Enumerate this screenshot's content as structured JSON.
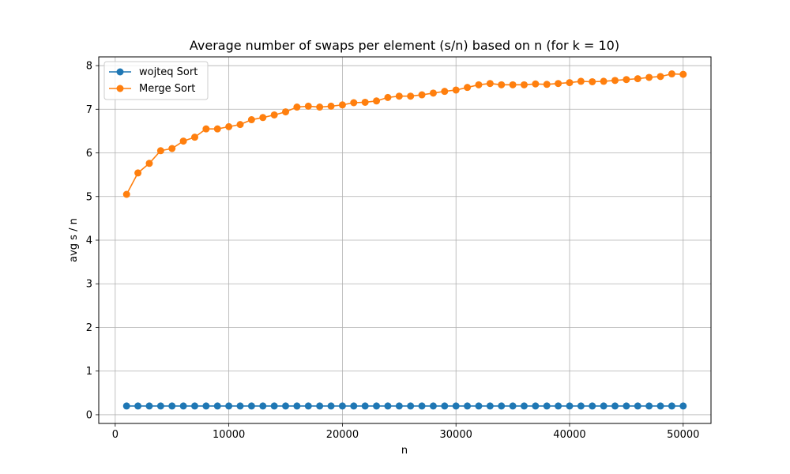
{
  "chart_data": {
    "type": "line",
    "title": "Average number of swaps per element (s/n) based on n (for k = 10)",
    "xlabel": "n",
    "ylabel": "avg s / n",
    "xlim": [
      -1450,
      52450
    ],
    "ylim": [
      -0.2,
      8.2
    ],
    "xticks": [
      0,
      10000,
      20000,
      30000,
      40000,
      50000
    ],
    "yticks": [
      0,
      1,
      2,
      3,
      4,
      5,
      6,
      7,
      8
    ],
    "grid": true,
    "legend_position": "top-left",
    "x": [
      1000,
      2000,
      3000,
      4000,
      5000,
      6000,
      7000,
      8000,
      9000,
      10000,
      11000,
      12000,
      13000,
      14000,
      15000,
      16000,
      17000,
      18000,
      19000,
      20000,
      21000,
      22000,
      23000,
      24000,
      25000,
      26000,
      27000,
      28000,
      29000,
      30000,
      31000,
      32000,
      33000,
      34000,
      35000,
      36000,
      37000,
      38000,
      39000,
      40000,
      41000,
      42000,
      43000,
      44000,
      45000,
      46000,
      47000,
      48000,
      49000,
      50000
    ],
    "series": [
      {
        "name": "wojteq Sort",
        "color": "#1f77b4",
        "values": [
          0.2,
          0.2,
          0.2,
          0.2,
          0.2,
          0.2,
          0.2,
          0.2,
          0.2,
          0.2,
          0.2,
          0.2,
          0.2,
          0.2,
          0.2,
          0.2,
          0.2,
          0.2,
          0.2,
          0.2,
          0.2,
          0.2,
          0.2,
          0.2,
          0.2,
          0.2,
          0.2,
          0.2,
          0.2,
          0.2,
          0.2,
          0.2,
          0.2,
          0.2,
          0.2,
          0.2,
          0.2,
          0.2,
          0.2,
          0.2,
          0.2,
          0.2,
          0.2,
          0.2,
          0.2,
          0.2,
          0.2,
          0.2,
          0.2,
          0.2
        ]
      },
      {
        "name": "Merge Sort",
        "color": "#ff7f0e",
        "values": [
          5.05,
          5.54,
          5.76,
          6.05,
          6.1,
          6.27,
          6.36,
          6.55,
          6.55,
          6.6,
          6.65,
          6.76,
          6.81,
          6.87,
          6.94,
          7.05,
          7.07,
          7.05,
          7.07,
          7.1,
          7.15,
          7.16,
          7.19,
          7.27,
          7.3,
          7.3,
          7.33,
          7.37,
          7.41,
          7.44,
          7.5,
          7.56,
          7.59,
          7.56,
          7.56,
          7.56,
          7.58,
          7.57,
          7.59,
          7.61,
          7.64,
          7.63,
          7.64,
          7.66,
          7.68,
          7.7,
          7.73,
          7.75,
          7.81,
          7.8
        ]
      }
    ]
  }
}
